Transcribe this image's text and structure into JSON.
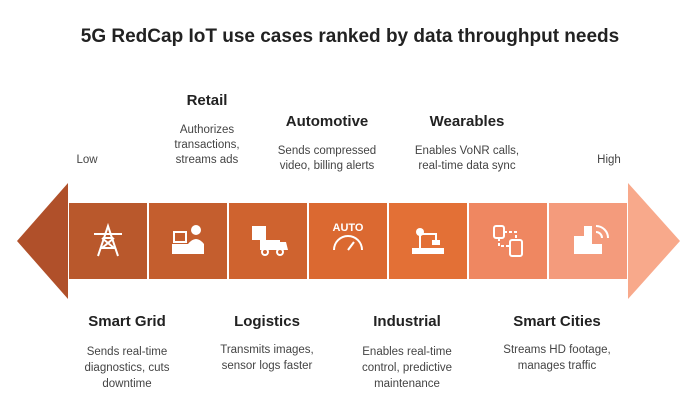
{
  "header": {
    "title": "5G RedCap IoT use cases ranked by data throughput needs"
  },
  "scale": {
    "low": "Low",
    "high": "High"
  },
  "items": [
    {
      "label": "Smart Grid",
      "description": [
        "Sends real-time",
        "diagnostics, cuts",
        "downtime"
      ]
    },
    {
      "label": "Retail",
      "description": [
        "Authorizes",
        "transactions,",
        "streams ads"
      ]
    },
    {
      "label": "Logistics",
      "description": [
        "Transmits images,",
        "sensor logs faster"
      ]
    },
    {
      "label": "Automotive",
      "description": [
        "Sends compressed",
        "video, billing alerts"
      ],
      "icon_text": "AUTO"
    },
    {
      "label": "Industrial",
      "description": [
        "Enables real-time",
        "control, predictive",
        "maintenance"
      ]
    },
    {
      "label": "Wearables",
      "description": [
        "Enables VoNR calls,",
        "real-time data sync"
      ]
    },
    {
      "label": "Smart Cities",
      "description": [
        "Streams HD footage,",
        "manages traffic"
      ]
    }
  ]
}
